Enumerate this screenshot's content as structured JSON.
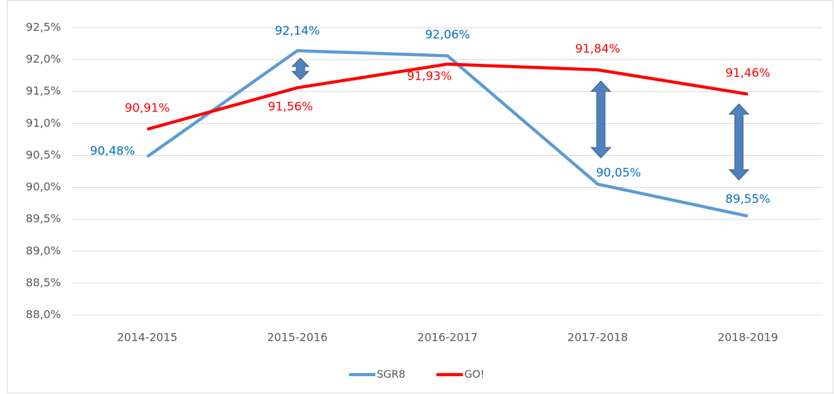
{
  "chart_data": {
    "type": "line",
    "categories": [
      "2014-2015",
      "2015-2016",
      "2016-2017",
      "2017-2018",
      "2018-2019"
    ],
    "series": [
      {
        "name": "SGR8",
        "color": "#5b9bd5",
        "label_color": "#0070c0",
        "values": [
          90.48,
          92.14,
          92.06,
          90.05,
          89.55
        ],
        "value_labels": [
          "90,48%",
          "92,14%",
          "92,06%",
          "90,05%",
          "89,55%"
        ]
      },
      {
        "name": "GO!",
        "color": "#ff0000",
        "label_color": "#ff0000",
        "values": [
          90.91,
          91.56,
          91.93,
          91.84,
          91.46
        ],
        "value_labels": [
          "90,91%",
          "91,56%",
          "91,93%",
          "91,84%",
          "91,46%"
        ]
      }
    ],
    "ylim": [
      88.0,
      92.5
    ],
    "yticks": [
      {
        "value": 88.0,
        "label": "88,0%"
      },
      {
        "value": 88.5,
        "label": "88,5%"
      },
      {
        "value": 89.0,
        "label": "89,0%"
      },
      {
        "value": 89.5,
        "label": "89,5%"
      },
      {
        "value": 90.0,
        "label": "90,0%"
      },
      {
        "value": 90.5,
        "label": "90,5%"
      },
      {
        "value": 91.0,
        "label": "91,0%"
      },
      {
        "value": 91.5,
        "label": "91,5%"
      },
      {
        "value": 92.0,
        "label": "92,0%"
      },
      {
        "value": 92.5,
        "label": "92,5%"
      }
    ],
    "grid": true,
    "legend": "bottom"
  }
}
